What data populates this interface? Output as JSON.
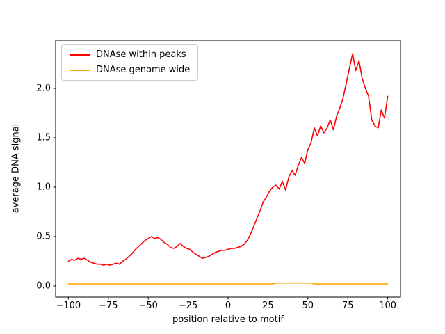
{
  "chart_data": {
    "type": "line",
    "title": "",
    "xlabel": "position relative to motif",
    "ylabel": "average DNA signal",
    "xlim": [
      -108,
      108
    ],
    "ylim": [
      -0.113,
      2.486
    ],
    "grid": false,
    "xticks": [
      -100,
      -75,
      -50,
      -25,
      0,
      25,
      50,
      75,
      100
    ],
    "xtick_labels": [
      "−100",
      "−75",
      "−50",
      "−25",
      "0",
      "25",
      "50",
      "75",
      "100"
    ],
    "yticks": [
      0.0,
      0.5,
      1.0,
      1.5,
      2.0
    ],
    "ytick_labels": [
      "0.0",
      "0.5",
      "1.0",
      "1.5",
      "2.0"
    ],
    "legend": {
      "position": "upper left",
      "entries": [
        {
          "label": "DNAse within peaks",
          "color": "#ff0000"
        },
        {
          "label": "DNAse genome wide",
          "color": "#ffa500"
        }
      ]
    },
    "x": [
      -100,
      -98,
      -96,
      -94,
      -92,
      -90,
      -88,
      -86,
      -84,
      -82,
      -80,
      -78,
      -76,
      -74,
      -72,
      -70,
      -68,
      -66,
      -64,
      -62,
      -60,
      -58,
      -56,
      -54,
      -52,
      -50,
      -48,
      -46,
      -44,
      -42,
      -40,
      -38,
      -36,
      -34,
      -32,
      -30,
      -28,
      -26,
      -24,
      -22,
      -20,
      -18,
      -16,
      -14,
      -12,
      -10,
      -8,
      -6,
      -4,
      -2,
      0,
      2,
      4,
      6,
      8,
      10,
      12,
      14,
      16,
      18,
      20,
      22,
      24,
      26,
      28,
      30,
      32,
      34,
      36,
      38,
      40,
      42,
      44,
      46,
      48,
      50,
      52,
      54,
      56,
      58,
      60,
      62,
      64,
      66,
      68,
      70,
      72,
      74,
      76,
      78,
      80,
      82,
      84,
      86,
      88,
      90,
      92,
      94,
      96,
      98,
      100
    ],
    "series": [
      {
        "name": "DNAse within peaks",
        "color": "#ff0000",
        "values": [
          0.25,
          0.27,
          0.26,
          0.28,
          0.27,
          0.28,
          0.26,
          0.24,
          0.23,
          0.22,
          0.22,
          0.21,
          0.22,
          0.21,
          0.22,
          0.23,
          0.22,
          0.25,
          0.27,
          0.3,
          0.33,
          0.37,
          0.4,
          0.43,
          0.46,
          0.48,
          0.5,
          0.48,
          0.49,
          0.47,
          0.44,
          0.42,
          0.39,
          0.38,
          0.4,
          0.43,
          0.4,
          0.38,
          0.37,
          0.34,
          0.32,
          0.3,
          0.28,
          0.29,
          0.3,
          0.32,
          0.34,
          0.35,
          0.36,
          0.36,
          0.37,
          0.38,
          0.38,
          0.39,
          0.4,
          0.42,
          0.46,
          0.52,
          0.6,
          0.68,
          0.76,
          0.85,
          0.9,
          0.96,
          1.0,
          1.02,
          0.98,
          1.06,
          0.97,
          1.1,
          1.17,
          1.12,
          1.22,
          1.3,
          1.24,
          1.38,
          1.45,
          1.6,
          1.52,
          1.62,
          1.55,
          1.6,
          1.68,
          1.58,
          1.72,
          1.8,
          1.9,
          2.05,
          2.2,
          2.35,
          2.18,
          2.28,
          2.1,
          2.0,
          1.92,
          1.68,
          1.62,
          1.6,
          1.78,
          1.7,
          1.92
        ]
      },
      {
        "name": "DNAse genome wide",
        "color": "#ffa500",
        "values": [
          0.02,
          0.02,
          0.02,
          0.02,
          0.02,
          0.02,
          0.02,
          0.02,
          0.02,
          0.02,
          0.02,
          0.02,
          0.02,
          0.02,
          0.02,
          0.02,
          0.02,
          0.02,
          0.02,
          0.02,
          0.02,
          0.02,
          0.02,
          0.02,
          0.02,
          0.02,
          0.02,
          0.02,
          0.02,
          0.02,
          0.02,
          0.02,
          0.02,
          0.02,
          0.02,
          0.02,
          0.02,
          0.02,
          0.02,
          0.02,
          0.02,
          0.02,
          0.02,
          0.02,
          0.02,
          0.02,
          0.02,
          0.02,
          0.02,
          0.02,
          0.02,
          0.02,
          0.02,
          0.02,
          0.02,
          0.02,
          0.02,
          0.02,
          0.02,
          0.02,
          0.02,
          0.02,
          0.02,
          0.02,
          0.02,
          0.03,
          0.03,
          0.03,
          0.03,
          0.03,
          0.03,
          0.03,
          0.03,
          0.03,
          0.03,
          0.03,
          0.03,
          0.02,
          0.02,
          0.02,
          0.02,
          0.02,
          0.02,
          0.02,
          0.02,
          0.02,
          0.02,
          0.02,
          0.02,
          0.02,
          0.02,
          0.02,
          0.02,
          0.02,
          0.02,
          0.02,
          0.02,
          0.02,
          0.02,
          0.02,
          0.02
        ]
      }
    ]
  }
}
